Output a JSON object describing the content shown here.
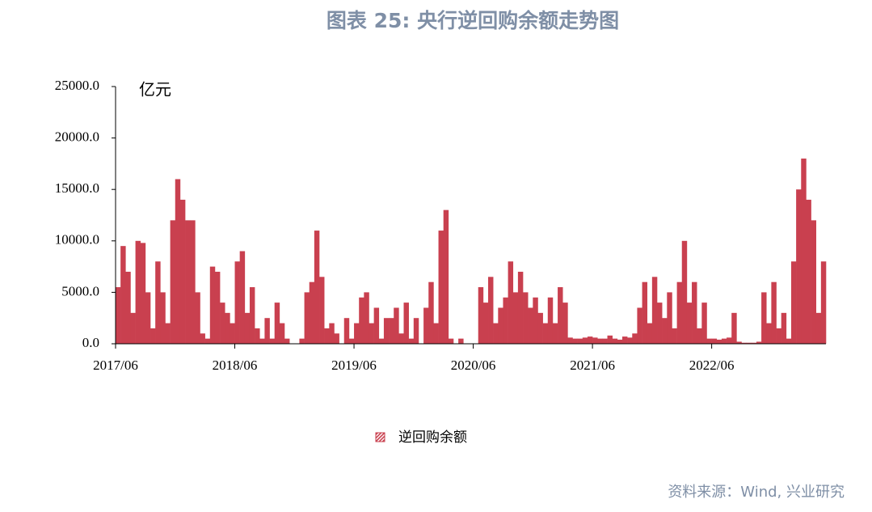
{
  "chart_data": {
    "type": "bar",
    "title": "图表 25: 央行逆回购余额走势图",
    "y_unit": "亿元",
    "source": "资料来源：Wind, 兴业研究",
    "series": [
      {
        "name": "逆回购余额",
        "color": "#c9404f",
        "values": [
          5500,
          9500,
          7000,
          3000,
          10000,
          9800,
          5000,
          1500,
          8000,
          5000,
          2000,
          12000,
          16000,
          14000,
          12000,
          12000,
          5000,
          1000,
          500,
          7500,
          7000,
          4000,
          3000,
          2000,
          8000,
          9000,
          3000,
          5500,
          1500,
          500,
          2500,
          500,
          4000,
          2000,
          500,
          0,
          0,
          500,
          5000,
          6000,
          11000,
          6500,
          1500,
          2000,
          1000,
          0,
          2500,
          500,
          2000,
          4500,
          5000,
          2000,
          3500,
          500,
          2500,
          2500,
          3500,
          1000,
          4000,
          500,
          2500,
          0,
          3500,
          6000,
          2000,
          11000,
          13000,
          500,
          0,
          500,
          0,
          0,
          0,
          5500,
          4000,
          6500,
          2000,
          3500,
          4500,
          8000,
          5000,
          7000,
          5000,
          3500,
          4500,
          3000,
          2000,
          4500,
          2000,
          5500,
          4000,
          600,
          500,
          500,
          600,
          700,
          600,
          500,
          500,
          800,
          500,
          400,
          700,
          600,
          1000,
          3500,
          6000,
          2000,
          6500,
          4000,
          2500,
          5000,
          1500,
          6000,
          10000,
          4000,
          6000,
          1500,
          4000,
          500,
          500,
          400,
          500,
          600,
          3000,
          200,
          100,
          100,
          100,
          200,
          5000,
          2000,
          6000,
          1500,
          3000,
          500,
          8000,
          15000,
          18000,
          14000,
          12000,
          3000,
          8000
        ]
      }
    ],
    "categories": [
      "2017/06",
      null,
      null,
      null,
      null,
      null,
      null,
      null,
      null,
      null,
      null,
      null,
      null,
      null,
      null,
      null,
      null,
      null,
      null,
      null,
      null,
      null,
      null,
      null,
      "2018/06",
      null,
      null,
      null,
      null,
      null,
      null,
      null,
      null,
      null,
      null,
      null,
      null,
      null,
      null,
      null,
      null,
      null,
      null,
      null,
      null,
      null,
      null,
      null,
      "2019/06",
      null,
      null,
      null,
      null,
      null,
      null,
      null,
      null,
      null,
      null,
      null,
      null,
      null,
      null,
      null,
      null,
      null,
      null,
      null,
      null,
      null,
      null,
      null,
      "2020/06",
      null,
      null,
      null,
      null,
      null,
      null,
      null,
      null,
      null,
      null,
      null,
      null,
      null,
      null,
      null,
      null,
      null,
      null,
      null,
      null,
      null,
      null,
      null,
      "2021/06",
      null,
      null,
      null,
      null,
      null,
      null,
      null,
      null,
      null,
      null,
      null,
      null,
      null,
      null,
      null,
      null,
      null,
      null,
      null,
      null,
      null,
      null,
      null,
      "2022/06",
      null,
      null,
      null,
      null,
      null,
      null,
      null,
      null,
      null,
      null,
      null,
      null,
      null,
      null,
      null,
      null,
      null,
      null,
      null,
      null,
      null,
      null
    ],
    "ylim": [
      0,
      25000
    ],
    "yticks": [
      {
        "value": 0,
        "label": "0.0"
      },
      {
        "value": 5000,
        "label": "5000.0"
      },
      {
        "value": 10000,
        "label": "10000.0"
      },
      {
        "value": 15000,
        "label": "15000.0"
      },
      {
        "value": 20000,
        "label": "20000.0"
      },
      {
        "value": 25000,
        "label": "25000.0"
      }
    ]
  }
}
